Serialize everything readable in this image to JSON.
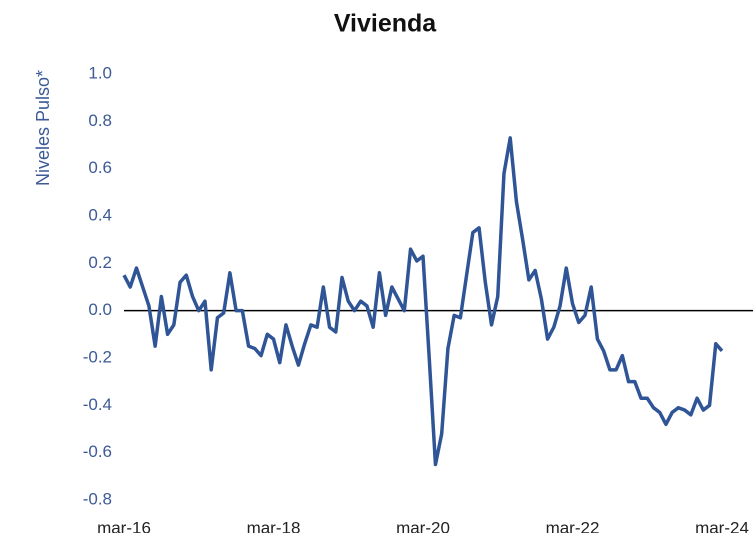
{
  "chart_data": {
    "type": "line",
    "title": "Vivienda",
    "y_label": "Niveles Pulso*",
    "categories": [
      "mar-16",
      null,
      null,
      null,
      null,
      null,
      null,
      null,
      null,
      null,
      null,
      null,
      null,
      null,
      null,
      null,
      null,
      null,
      null,
      null,
      null,
      null,
      null,
      null,
      "mar-18",
      null,
      null,
      null,
      null,
      null,
      null,
      null,
      null,
      null,
      null,
      null,
      null,
      null,
      null,
      null,
      null,
      null,
      null,
      null,
      null,
      null,
      null,
      null,
      "mar-20",
      null,
      null,
      null,
      null,
      null,
      null,
      null,
      null,
      null,
      null,
      null,
      null,
      null,
      null,
      null,
      null,
      null,
      null,
      null,
      null,
      null,
      null,
      null,
      "mar-22",
      null,
      null,
      null,
      null,
      null,
      null,
      null,
      null,
      null,
      null,
      null,
      null,
      null,
      null,
      null,
      null,
      null,
      null,
      null,
      null,
      null,
      null,
      null,
      "mar-24"
    ],
    "values": [
      0.15,
      0.1,
      0.18,
      0.1,
      0.02,
      -0.15,
      0.06,
      -0.1,
      -0.06,
      0.12,
      0.15,
      0.06,
      0.0,
      0.04,
      -0.25,
      -0.03,
      -0.01,
      0.16,
      0.0,
      0.0,
      -0.15,
      -0.16,
      -0.19,
      -0.1,
      -0.12,
      -0.22,
      -0.06,
      -0.15,
      -0.23,
      -0.14,
      -0.06,
      -0.07,
      0.1,
      -0.07,
      -0.09,
      0.14,
      0.04,
      0.0,
      0.04,
      0.02,
      -0.07,
      0.16,
      -0.02,
      0.1,
      0.05,
      0.0,
      0.26,
      0.21,
      0.23,
      -0.2,
      -0.65,
      -0.52,
      -0.16,
      -0.02,
      -0.03,
      0.15,
      0.33,
      0.35,
      0.12,
      -0.06,
      0.06,
      0.58,
      0.73,
      0.46,
      0.3,
      0.13,
      0.17,
      0.05,
      -0.12,
      -0.07,
      0.02,
      0.18,
      0.03,
      -0.05,
      -0.02,
      0.1,
      -0.12,
      -0.17,
      -0.25,
      -0.25,
      -0.19,
      -0.3,
      -0.3,
      -0.37,
      -0.37,
      -0.41,
      -0.43,
      -0.48,
      -0.43,
      -0.41,
      -0.42,
      -0.44,
      -0.37,
      -0.42,
      -0.4,
      -0.14,
      -0.17
    ],
    "color": "#2f5597",
    "ylim": [
      -0.8,
      1.0
    ],
    "yticks": [
      {
        "value": -0.8,
        "label": "-0.8"
      },
      {
        "value": -0.6,
        "label": "-0.6"
      },
      {
        "value": -0.4,
        "label": "-0.4"
      },
      {
        "value": -0.2,
        "label": "-0.2"
      },
      {
        "value": 0,
        "label": "0.0"
      },
      {
        "value": 0.2,
        "label": "0.2"
      },
      {
        "value": 0.4,
        "label": "0.4"
      },
      {
        "value": 0.6,
        "label": "0.6"
      },
      {
        "value": 0.8,
        "label": "0.8"
      },
      {
        "value": 1.0,
        "label": "1.0"
      }
    ]
  }
}
